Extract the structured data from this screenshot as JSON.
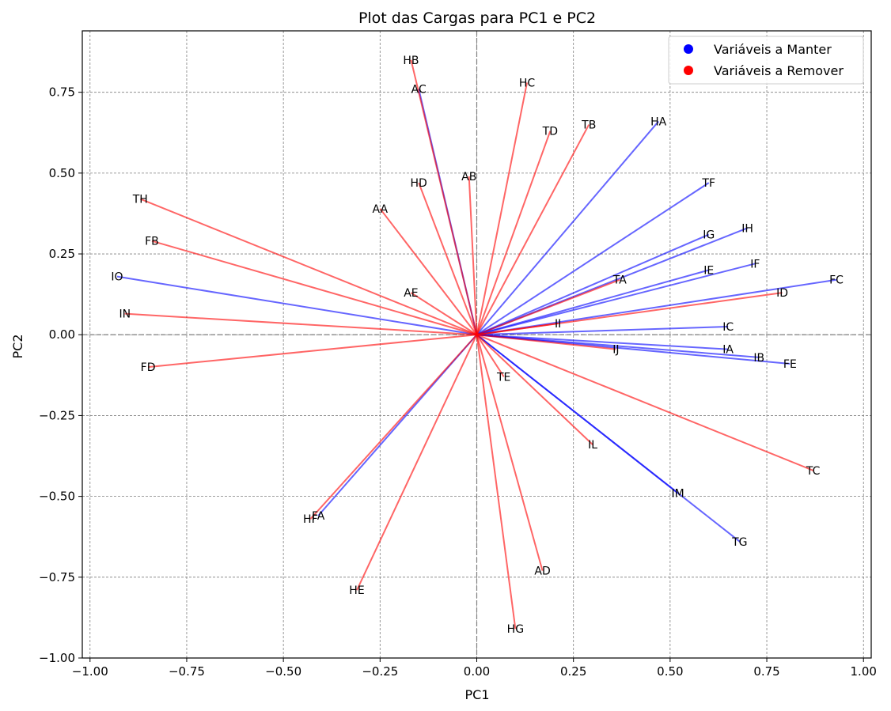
{
  "chart_data": {
    "type": "scatter",
    "title": "Plot das Cargas para PC1 e PC2",
    "xlabel": "PC1",
    "ylabel": "PC2",
    "xlim": [
      -1.02,
      1.02
    ],
    "ylim": [
      -1.0,
      0.94
    ],
    "xticks": [
      -1.0,
      -0.75,
      -0.5,
      -0.25,
      0.0,
      0.25,
      0.5,
      0.75,
      1.0
    ],
    "xtick_labels": [
      "−1.00",
      "−0.75",
      "−0.50",
      "−0.25",
      "0.00",
      "0.25",
      "0.50",
      "0.75",
      "1.00"
    ],
    "yticks": [
      -1.0,
      -0.75,
      -0.5,
      -0.25,
      0.0,
      0.25,
      0.5,
      0.75
    ],
    "ytick_labels": [
      "−1.00",
      "−0.75",
      "−0.50",
      "−0.25",
      "0.00",
      "0.25",
      "0.50",
      "0.75"
    ],
    "grid": true,
    "legend_position": "top-right",
    "colors": {
      "keep": "#0000ff",
      "remove": "#ff0000"
    },
    "series": [
      {
        "name": "Variáveis a Manter",
        "color": "#0000ff",
        "points": [
          {
            "label": "AC",
            "x": -0.15,
            "y": 0.76
          },
          {
            "label": "HA",
            "x": 0.47,
            "y": 0.66
          },
          {
            "label": "TF",
            "x": 0.6,
            "y": 0.47
          },
          {
            "label": "IG",
            "x": 0.6,
            "y": 0.31
          },
          {
            "label": "IH",
            "x": 0.7,
            "y": 0.33
          },
          {
            "label": "IF",
            "x": 0.72,
            "y": 0.22
          },
          {
            "label": "IE",
            "x": 0.6,
            "y": 0.2
          },
          {
            "label": "FC",
            "x": 0.93,
            "y": 0.17
          },
          {
            "label": "IO",
            "x": -0.93,
            "y": 0.18
          },
          {
            "label": "IC",
            "x": 0.65,
            "y": 0.025
          },
          {
            "label": "IA",
            "x": 0.65,
            "y": -0.045
          },
          {
            "label": "IB",
            "x": 0.73,
            "y": -0.07
          },
          {
            "label": "FE",
            "x": 0.81,
            "y": -0.09
          },
          {
            "label": "IM",
            "x": 0.52,
            "y": -0.49
          },
          {
            "label": "TG",
            "x": 0.68,
            "y": -0.64
          },
          {
            "label": "FA",
            "x": -0.41,
            "y": -0.56
          }
        ]
      },
      {
        "name": "Variáveis a Remover",
        "color": "#ff0000",
        "points": [
          {
            "label": "HB",
            "x": -0.17,
            "y": 0.85
          },
          {
            "label": "HC",
            "x": 0.13,
            "y": 0.78
          },
          {
            "label": "TD",
            "x": 0.19,
            "y": 0.63
          },
          {
            "label": "TB",
            "x": 0.29,
            "y": 0.65
          },
          {
            "label": "AB",
            "x": -0.02,
            "y": 0.49
          },
          {
            "label": "HD",
            "x": -0.15,
            "y": 0.47
          },
          {
            "label": "AA",
            "x": -0.25,
            "y": 0.39
          },
          {
            "label": "TH",
            "x": -0.87,
            "y": 0.42
          },
          {
            "label": "FB",
            "x": -0.84,
            "y": 0.29
          },
          {
            "label": "AE",
            "x": -0.17,
            "y": 0.13
          },
          {
            "label": "TA",
            "x": 0.37,
            "y": 0.17
          },
          {
            "label": "ID",
            "x": 0.79,
            "y": 0.13
          },
          {
            "label": "II",
            "x": 0.21,
            "y": 0.035
          },
          {
            "label": "IN",
            "x": -0.91,
            "y": 0.065
          },
          {
            "label": "IJ",
            "x": 0.36,
            "y": -0.045
          },
          {
            "label": "FD",
            "x": -0.85,
            "y": -0.1
          },
          {
            "label": "TE",
            "x": 0.07,
            "y": -0.13
          },
          {
            "label": "IL",
            "x": 0.3,
            "y": -0.34
          },
          {
            "label": "TC",
            "x": 0.87,
            "y": -0.42
          },
          {
            "label": "HF",
            "x": -0.43,
            "y": -0.57
          },
          {
            "label": "AD",
            "x": 0.17,
            "y": -0.73
          },
          {
            "label": "HE",
            "x": -0.31,
            "y": -0.79
          },
          {
            "label": "HG",
            "x": 0.1,
            "y": -0.91
          }
        ]
      }
    ]
  }
}
